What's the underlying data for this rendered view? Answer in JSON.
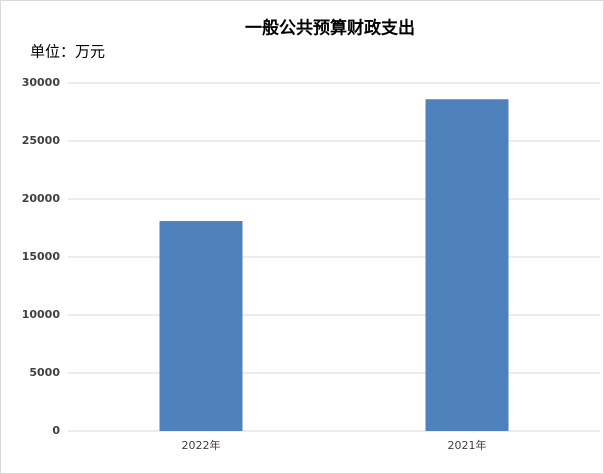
{
  "chart_data": {
    "type": "bar",
    "title": "一般公共预算财政支出",
    "unit_label": "单位：万元",
    "categories": [
      "2022年",
      "2021年"
    ],
    "values": [
      18100,
      28600
    ],
    "color": "#4f81bd",
    "ylim": [
      0,
      30000
    ],
    "yticks": [
      0,
      5000,
      10000,
      15000,
      20000,
      25000,
      30000
    ],
    "grid": true
  }
}
